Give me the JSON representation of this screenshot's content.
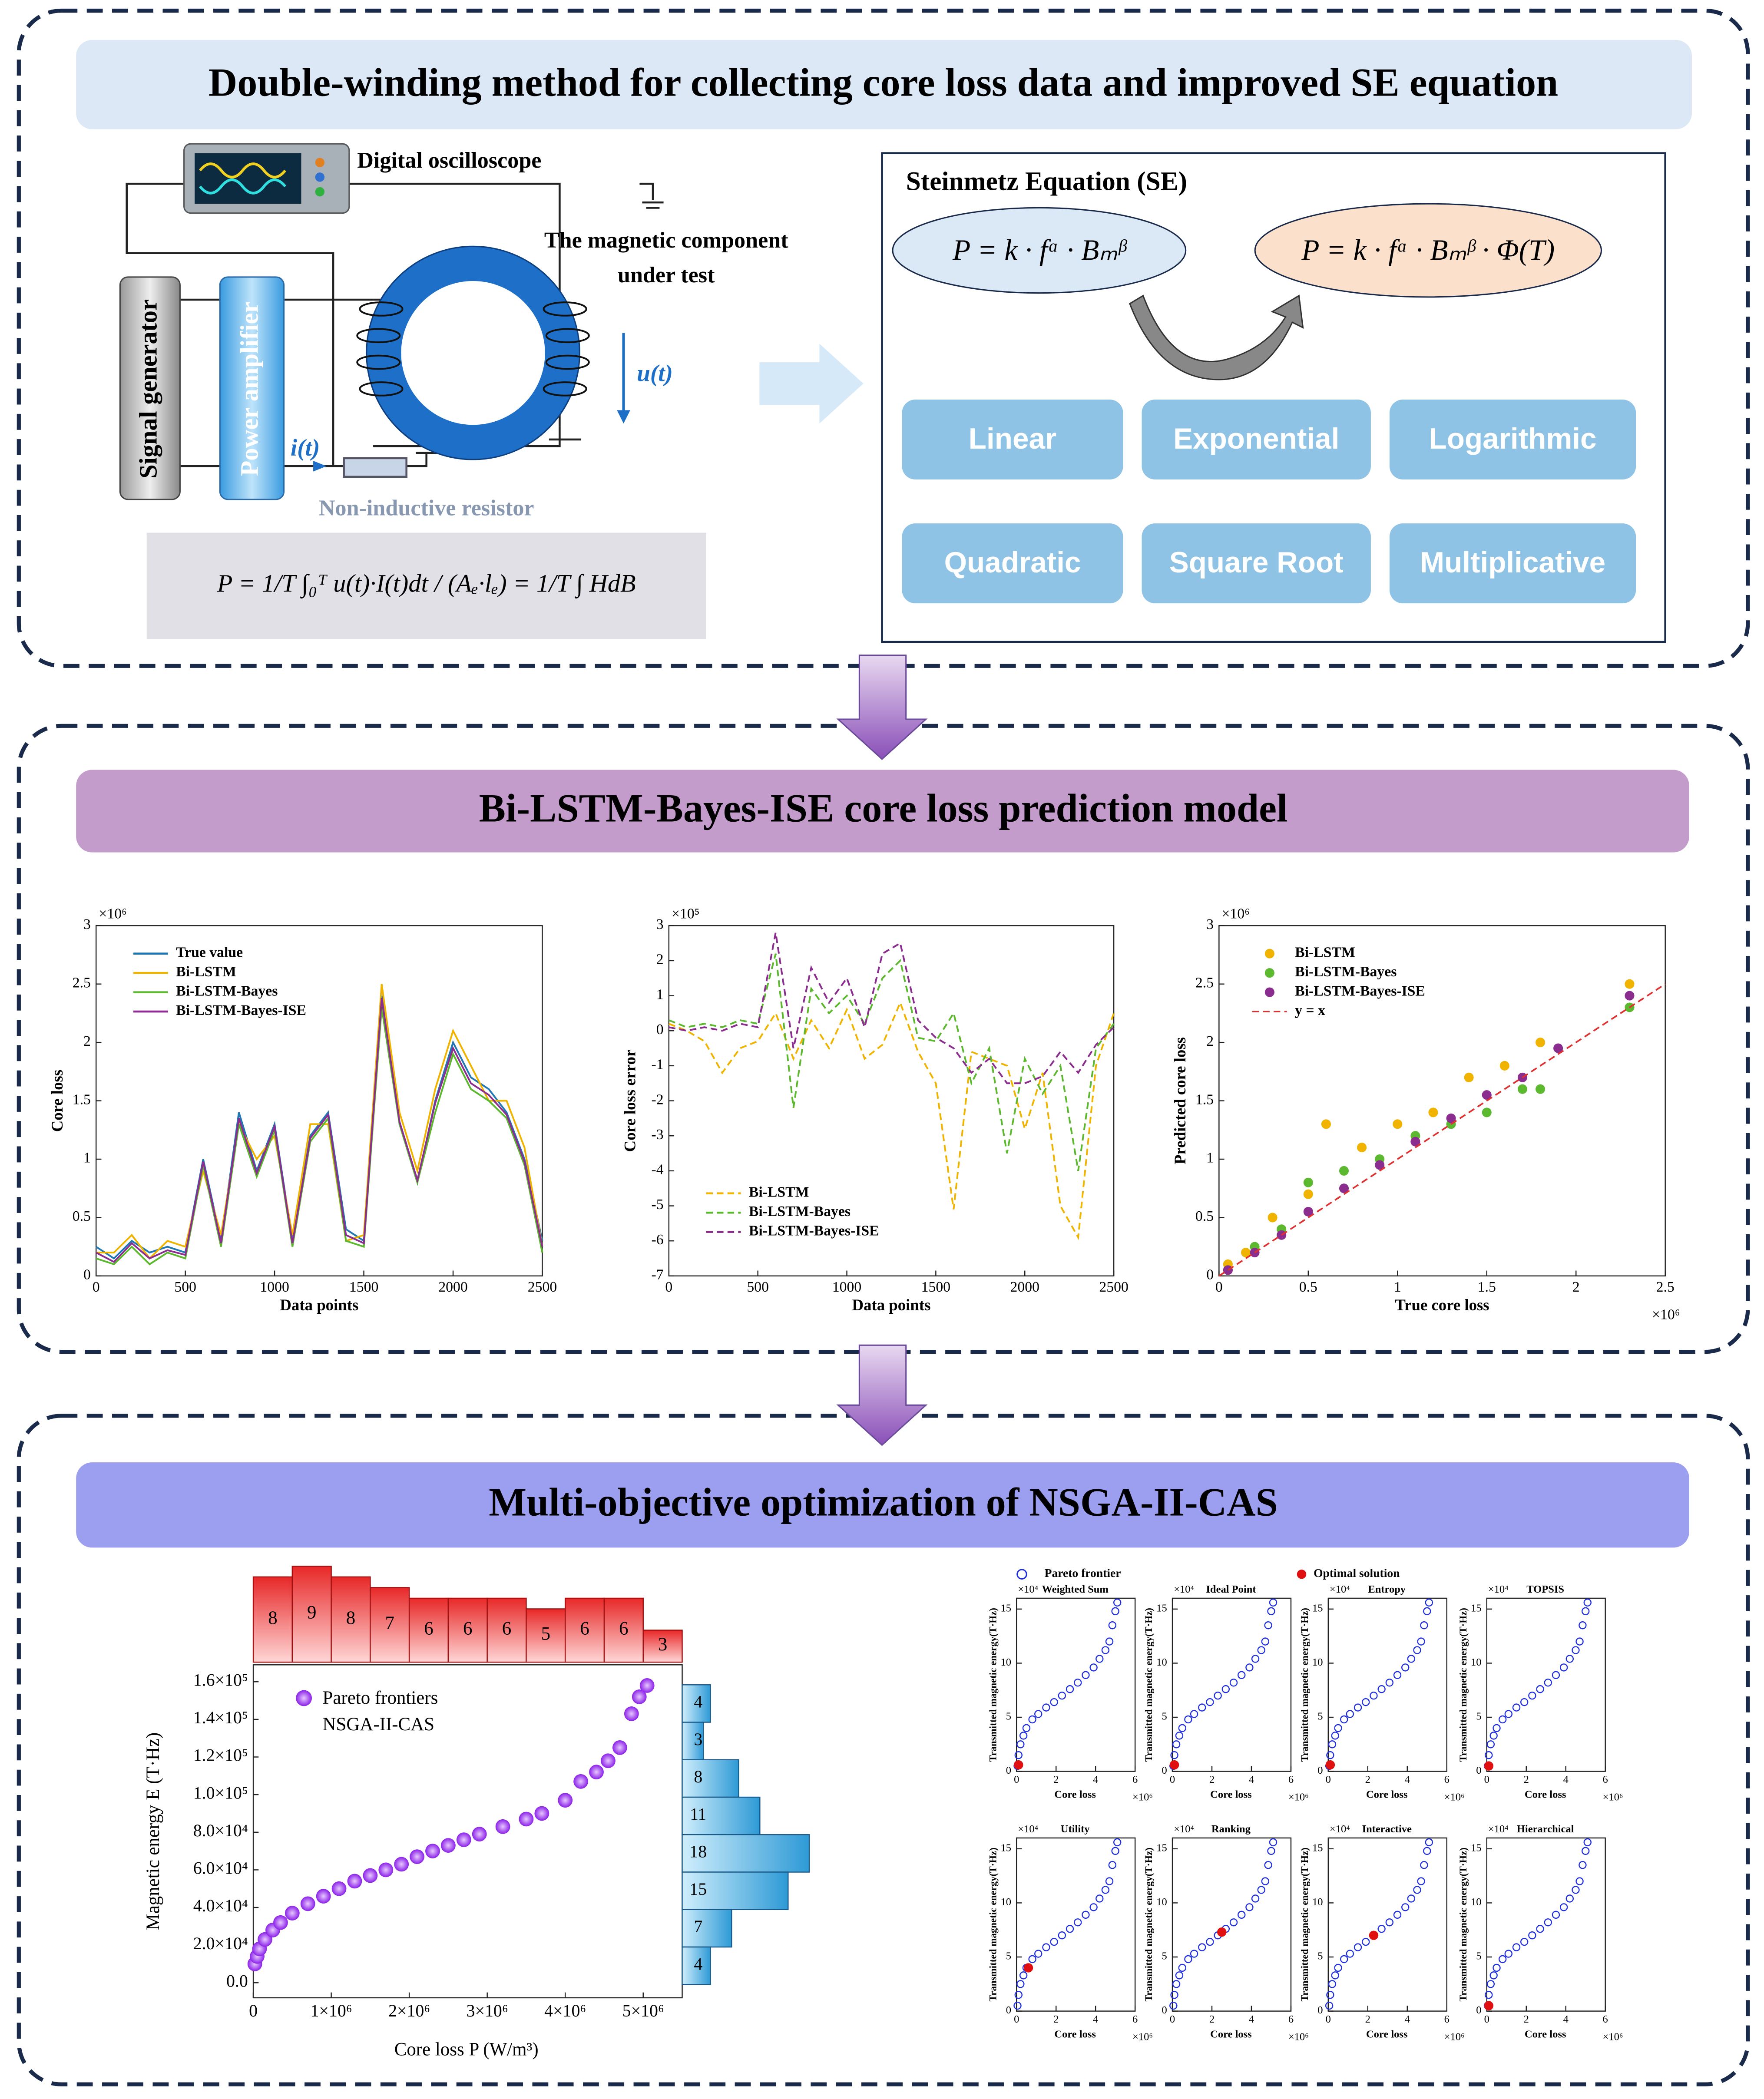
{
  "sections": [
    {
      "title": "Double-winding method for collecting core loss data and improved SE equation",
      "circuit": {
        "oscilloscope": "Digital oscilloscope",
        "component": [
          "The magnetic component",
          "under test"
        ],
        "generator": "Signal generator",
        "amplifier": "Power amplifier",
        "current": "i(t)",
        "voltage": "u(t)",
        "resistor": "Non-inductive resistor",
        "equation": "P = 1/T ∫₀ᵀ u(t)·I(t)dt / (Aₑ·lₑ) = 1/T ∫ HdB"
      },
      "steinmetz": {
        "title": "Steinmetz Equation (SE)",
        "original": "P = k · fᵅ · Bₘᵝ",
        "improved": "P = k · fᵅ · Bₘᵝ · Φ(T)",
        "forms": [
          "Linear",
          "Exponential",
          "Logarithmic",
          "Quadratic",
          "Square Root",
          "Multiplicative"
        ]
      }
    },
    {
      "title": "Bi-LSTM-Bayes-ISE core loss prediction model",
      "charts": [
        {
          "type": "line",
          "xlabel": "Data points",
          "ylabel": "Core loss",
          "ymultiplier": "×10⁶",
          "xlim": [
            0,
            2500
          ],
          "ylim": [
            0,
            3
          ],
          "xticks": [
            0,
            500,
            1000,
            1500,
            2000,
            2500
          ],
          "yticks": [
            0,
            0.5,
            1,
            1.5,
            2,
            2.5,
            3
          ],
          "x": [
            0,
            100,
            200,
            300,
            400,
            500,
            600,
            700,
            800,
            900,
            1000,
            1100,
            1200,
            1300,
            1400,
            1500,
            1600,
            1700,
            1800,
            1900,
            2000,
            2100,
            2200,
            2300,
            2400,
            2500
          ],
          "series": [
            {
              "name": "True value",
              "color": "#1f77b4",
              "values": [
                0.25,
                0.15,
                0.3,
                0.2,
                0.25,
                0.2,
                1.0,
                0.3,
                1.4,
                0.9,
                1.3,
                0.3,
                1.2,
                1.4,
                0.4,
                0.3,
                2.4,
                1.3,
                0.8,
                1.5,
                2.0,
                1.7,
                1.6,
                1.4,
                1.0,
                0.3
              ]
            },
            {
              "name": "Bi-LSTM",
              "color": "#f0b400",
              "values": [
                0.2,
                0.2,
                0.35,
                0.15,
                0.3,
                0.25,
                0.9,
                0.35,
                1.3,
                1.0,
                1.2,
                0.35,
                1.3,
                1.3,
                0.3,
                0.35,
                2.5,
                1.4,
                0.9,
                1.6,
                2.1,
                1.8,
                1.5,
                1.5,
                1.1,
                0.25
              ]
            },
            {
              "name": "Bi-LSTM-Bayes",
              "color": "#5cb82e",
              "values": [
                0.15,
                0.1,
                0.25,
                0.1,
                0.2,
                0.15,
                0.95,
                0.25,
                1.3,
                0.85,
                1.25,
                0.25,
                1.15,
                1.35,
                0.3,
                0.25,
                2.3,
                1.3,
                0.8,
                1.4,
                1.9,
                1.6,
                1.5,
                1.35,
                0.95,
                0.2
              ]
            },
            {
              "name": "Bi-LSTM-Bayes-ISE",
              "color": "#8b2d8e",
              "values": [
                0.2,
                0.12,
                0.28,
                0.15,
                0.22,
                0.18,
                0.98,
                0.28,
                1.35,
                0.88,
                1.28,
                0.28,
                1.18,
                1.38,
                0.35,
                0.28,
                2.38,
                1.32,
                0.82,
                1.48,
                1.95,
                1.65,
                1.55,
                1.38,
                0.98,
                0.25
              ]
            }
          ]
        },
        {
          "type": "line",
          "xlabel": "Data points",
          "ylabel": "Core loss error",
          "ymultiplier": "×10⁵",
          "xlim": [
            0,
            2500
          ],
          "ylim": [
            -7,
            3
          ],
          "xticks": [
            0,
            500,
            1000,
            1500,
            2000,
            2500
          ],
          "yticks": [
            -7,
            -6,
            -5,
            -4,
            -3,
            -2,
            -1,
            0,
            1,
            2,
            3
          ],
          "x": [
            0,
            100,
            200,
            300,
            400,
            500,
            600,
            700,
            800,
            900,
            1000,
            1100,
            1200,
            1300,
            1400,
            1500,
            1600,
            1700,
            1800,
            1900,
            2000,
            2100,
            2200,
            2300,
            2400,
            2500
          ],
          "series": [
            {
              "name": "Bi-LSTM",
              "color": "#f0b400",
              "values": [
                0.2,
                0,
                -0.3,
                -1.2,
                -0.5,
                -0.3,
                0.5,
                -0.8,
                0.3,
                -0.5,
                0.6,
                -0.8,
                -0.4,
                0.8,
                -0.6,
                -1.5,
                -5.1,
                -0.6,
                -0.8,
                -1.0,
                -2.8,
                -1.2,
                -5.0,
                -5.9,
                -1.0,
                0.5
              ]
            },
            {
              "name": "Bi-LSTM-Bayes",
              "color": "#5cb82e",
              "values": [
                0.3,
                0.1,
                0.2,
                0.1,
                0.3,
                0.2,
                2.2,
                -2.2,
                1.2,
                0.5,
                1.0,
                0.2,
                1.5,
                2.0,
                -0.2,
                -0.3,
                0.5,
                -1.5,
                -0.5,
                -3.5,
                -0.8,
                -1.8,
                -1.0,
                -4.0,
                -0.5,
                0.2
              ]
            },
            {
              "name": "Bi-LSTM-Bayes-ISE",
              "color": "#8b2d8e",
              "values": [
                0.1,
                0,
                0.1,
                0,
                0.2,
                0.1,
                2.8,
                -0.5,
                1.8,
                0.8,
                1.5,
                0.1,
                2.2,
                2.5,
                0.3,
                -0.2,
                -0.5,
                -1.2,
                -0.8,
                -1.5,
                -1.5,
                -1.3,
                -0.6,
                -1.2,
                -0.4,
                0.1
              ]
            }
          ]
        },
        {
          "type": "scatter",
          "xlabel": "True core loss",
          "ylabel": "Predicted core loss",
          "ymultiplier": "×10⁶",
          "xmultiplier": "×10⁶",
          "xlim": [
            0,
            2.5
          ],
          "ylim": [
            0,
            3
          ],
          "xticks": [
            0,
            0.5,
            1,
            1.5,
            2,
            2.5
          ],
          "yticks": [
            0,
            0.5,
            1,
            1.5,
            2,
            2.5,
            3
          ],
          "series": [
            {
              "name": "Bi-LSTM",
              "color": "#f0b400",
              "x": [
                0.05,
                0.15,
                0.3,
                0.5,
                0.6,
                0.8,
                1.0,
                1.2,
                1.4,
                1.6,
                1.8,
                2.3
              ],
              "values": [
                0.1,
                0.2,
                0.5,
                0.7,
                1.3,
                1.1,
                1.3,
                1.4,
                1.7,
                1.8,
                2.0,
                2.5
              ]
            },
            {
              "name": "Bi-LSTM-Bayes",
              "color": "#5cb82e",
              "x": [
                0.05,
                0.2,
                0.35,
                0.5,
                0.7,
                0.9,
                1.1,
                1.3,
                1.5,
                1.7,
                1.8,
                2.3
              ],
              "values": [
                0.05,
                0.25,
                0.4,
                0.8,
                0.9,
                1.0,
                1.2,
                1.3,
                1.4,
                1.6,
                1.6,
                2.3
              ]
            },
            {
              "name": "Bi-LSTM-Bayes-ISE",
              "color": "#8b2d8e",
              "x": [
                0.05,
                0.2,
                0.35,
                0.5,
                0.7,
                0.9,
                1.1,
                1.3,
                1.5,
                1.7,
                1.9,
                2.3
              ],
              "values": [
                0.05,
                0.2,
                0.35,
                0.55,
                0.75,
                0.95,
                1.15,
                1.35,
                1.55,
                1.7,
                1.95,
                2.4
              ]
            }
          ],
          "reference": {
            "name": "y = x",
            "color": "#e03030"
          }
        }
      ]
    },
    {
      "title": "Multi-objective optimization of NSGA-II-CAS",
      "pareto": {
        "legend": [
          "Pareto frontiers",
          "NSGA-II-CAS"
        ],
        "color": "#9b30ff",
        "xlabel": "Core loss P (W/m³)",
        "ylabel": "Magnetic energy E (T·Hz)",
        "xlim": [
          0,
          5500000
        ],
        "ylim": [
          -8000,
          169000
        ],
        "xticks": [
          0,
          {
            "value": 1000000,
            "label": "1×10⁶"
          },
          {
            "value": 2000000,
            "label": "2×10⁶"
          },
          {
            "value": 3000000,
            "label": "3×10⁶"
          },
          {
            "value": 4000000,
            "label": "4×10⁶"
          },
          {
            "value": 5000000,
            "label": "5×10⁶"
          }
        ],
        "yticks": [
          {
            "value": 0,
            "label": "0.0"
          },
          {
            "value": 20000,
            "label": "2.0×10⁴"
          },
          {
            "value": 40000,
            "label": "4.0×10⁴"
          },
          {
            "value": 60000,
            "label": "6.0×10⁴"
          },
          {
            "value": 80000,
            "label": "8.0×10⁴"
          },
          {
            "value": 100000,
            "label": "1.0×10⁵"
          },
          {
            "value": 120000,
            "label": "1.2×10⁵"
          },
          {
            "value": 140000,
            "label": "1.4×10⁵"
          },
          {
            "value": 160000,
            "label": "1.6×10⁵"
          }
        ],
        "x": [
          20000,
          50000,
          80000,
          150000,
          250000,
          350000,
          500000,
          700000,
          900000,
          1100000,
          1300000,
          1500000,
          1700000,
          1900000,
          2100000,
          2300000,
          2500000,
          2700000,
          2900000,
          3200000,
          3500000,
          3700000,
          4000000,
          4200000,
          4400000,
          4550000,
          4700000,
          4850000,
          4950000,
          5050000
        ],
        "y": [
          10000,
          14000,
          18000,
          23000,
          28000,
          32000,
          37000,
          42000,
          46000,
          50000,
          54000,
          57000,
          60000,
          63000,
          67000,
          70000,
          73000,
          76000,
          79000,
          83000,
          87000,
          90000,
          97000,
          107000,
          112000,
          118000,
          125000,
          143000,
          152000,
          158000
        ],
        "top_histogram": [
          8,
          9,
          8,
          7,
          6,
          6,
          6,
          5,
          6,
          6,
          3
        ],
        "right_histogram": [
          4,
          3,
          8,
          11,
          18,
          15,
          7,
          4
        ]
      },
      "methods": {
        "legend": [
          "Pareto frontier",
          "Optimal solution"
        ],
        "frontier_color": "#2030e0",
        "optimal_color": "#e01010",
        "xlabel": "Core loss",
        "ylabel": "Transmitted magnetic energy(T·Hz)",
        "xmultiplier": "×10⁶",
        "ymultiplier": "×10⁴",
        "xlim": [
          0,
          6
        ],
        "ylim": [
          0,
          16
        ],
        "xticks": [
          0,
          2,
          4,
          6
        ],
        "yticks": [
          0,
          5,
          10,
          15
        ],
        "x": [
          0.05,
          0.1,
          0.2,
          0.35,
          0.5,
          0.8,
          1.1,
          1.5,
          1.9,
          2.3,
          2.7,
          3.1,
          3.5,
          3.9,
          4.2,
          4.5,
          4.7,
          4.85,
          5.0,
          5.1
        ],
        "y": [
          0.5,
          1.5,
          2.5,
          3.3,
          4.0,
          4.8,
          5.3,
          5.9,
          6.4,
          7.0,
          7.6,
          8.2,
          8.9,
          9.6,
          10.4,
          11.2,
          12.0,
          13.5,
          14.8,
          15.6
        ],
        "panels": [
          {
            "title": "Weighted Sum",
            "optimal": [
              0.1,
              0.6
            ]
          },
          {
            "title": "Ideal Point",
            "optimal": [
              0.1,
              0.6
            ]
          },
          {
            "title": "Entropy",
            "optimal": [
              0.1,
              0.6
            ]
          },
          {
            "title": "TOPSIS",
            "optimal": [
              0.1,
              0.5
            ]
          },
          {
            "title": "Utility",
            "optimal": [
              0.6,
              4
            ]
          },
          {
            "title": "Ranking",
            "optimal": [
              2.5,
              7.3
            ]
          },
          {
            "title": "Interactive",
            "optimal": [
              2.3,
              7
            ]
          },
          {
            "title": "Hierarchical",
            "optimal": [
              0.1,
              0.5
            ]
          }
        ]
      }
    }
  ]
}
